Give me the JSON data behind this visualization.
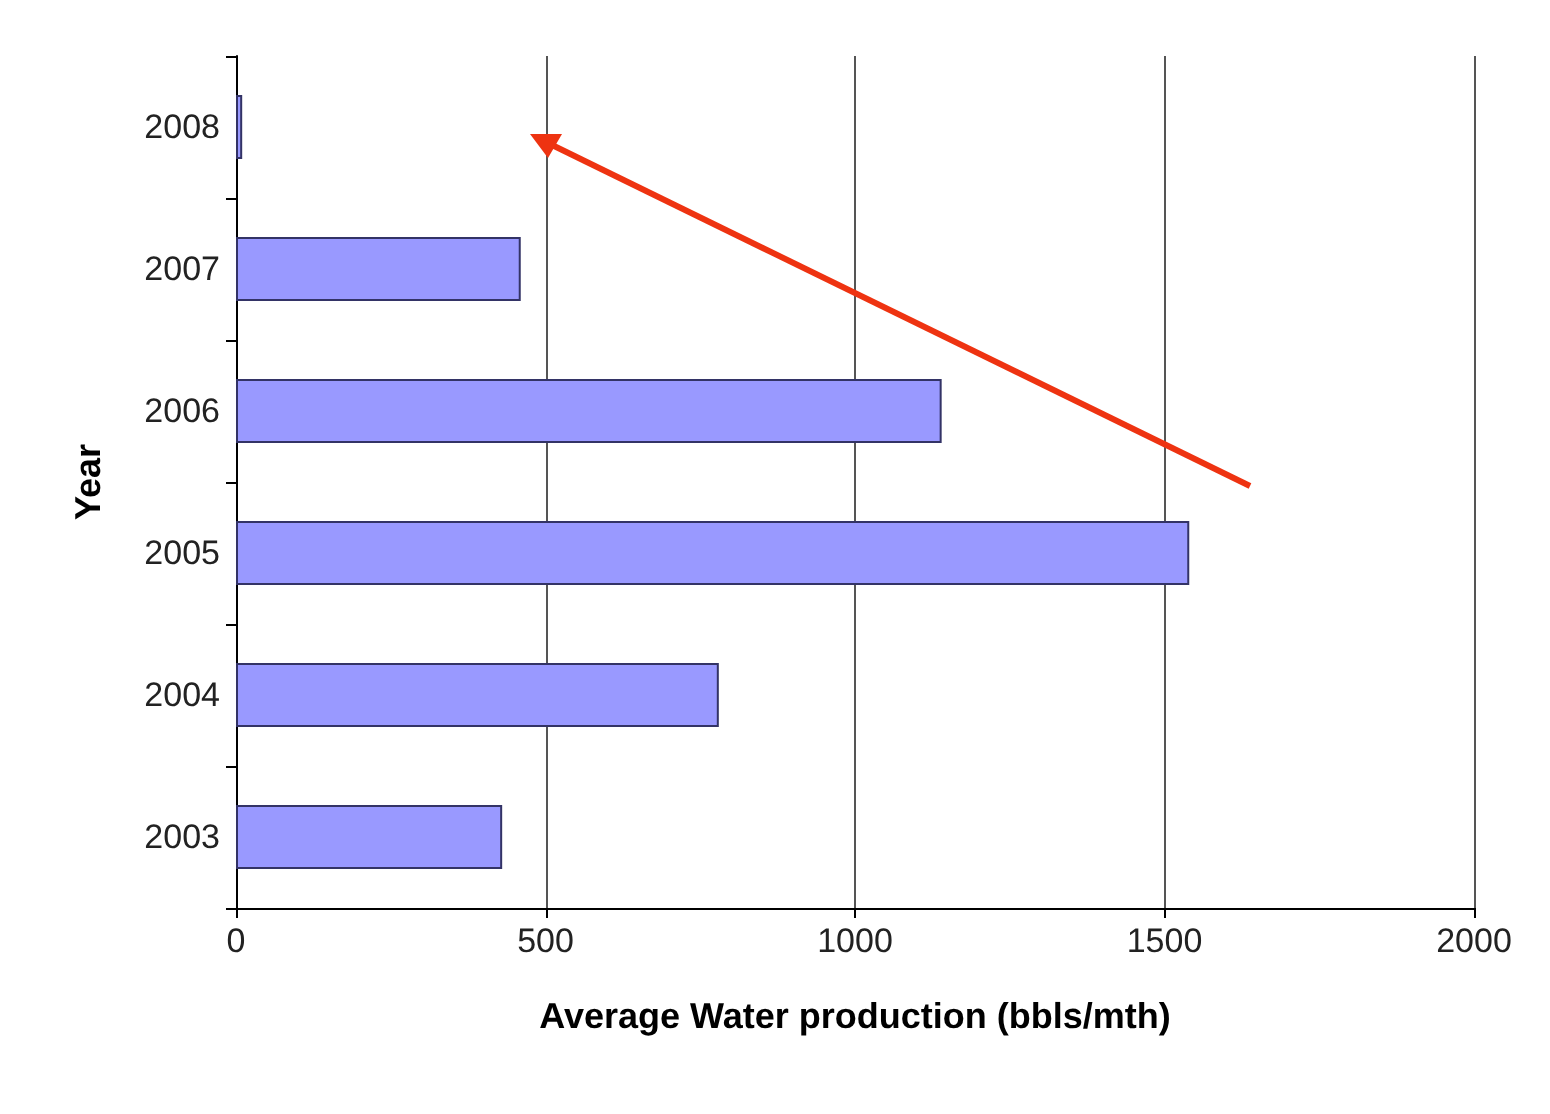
{
  "chart_data": {
    "type": "bar",
    "orientation": "horizontal",
    "categories": [
      "2008",
      "2007",
      "2006",
      "2005",
      "2004",
      "2003"
    ],
    "values": [
      10,
      460,
      1140,
      1540,
      780,
      430
    ],
    "color": "#9999ff",
    "xlim": [
      0,
      2000
    ],
    "xticks": [
      0,
      500,
      1000,
      1500,
      2000
    ],
    "grid": "x",
    "xlabel": "Average Water production (bbls/mth)",
    "ylabel": "Year"
  }
}
